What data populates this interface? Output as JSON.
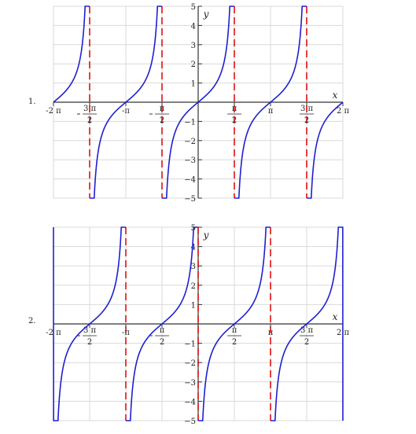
{
  "chart_data": [
    {
      "type": "line",
      "panel_label": "1.",
      "function": "tan",
      "xlim": [
        -6.2832,
        6.2832
      ],
      "ylim": [
        -5,
        5
      ],
      "xlabel": "x",
      "ylabel": "y",
      "grid": true,
      "curve_color": "#1f1fd0",
      "asymptote_color": "#e01010",
      "asymptotes_x": [
        -4.7124,
        -1.5708,
        1.5708,
        4.7124
      ],
      "x_ticks": [
        {
          "x": -6.2832,
          "text": "-2 π",
          "frac": false
        },
        {
          "x": -4.7124,
          "num": "3 π",
          "den": "2",
          "neg": true,
          "frac": true
        },
        {
          "x": -3.1416,
          "text": "-π",
          "frac": false
        },
        {
          "x": -1.5708,
          "num": "π",
          "den": "2",
          "neg": true,
          "frac": true
        },
        {
          "x": 1.5708,
          "num": "π",
          "den": "2",
          "neg": false,
          "frac": true
        },
        {
          "x": 3.1416,
          "text": "π",
          "frac": false
        },
        {
          "x": 4.7124,
          "num": "3 π",
          "den": "2",
          "neg": false,
          "frac": true
        },
        {
          "x": 6.2832,
          "text": "2 π",
          "frac": false
        }
      ],
      "y_ticks": [
        {
          "y": 5,
          "text": "5"
        },
        {
          "y": 4,
          "text": "4"
        },
        {
          "y": 3,
          "text": "3"
        },
        {
          "y": 2,
          "text": "2"
        },
        {
          "y": 1,
          "text": "1"
        },
        {
          "y": -1,
          "text": "−1"
        },
        {
          "y": -2,
          "text": "−2"
        },
        {
          "y": -3,
          "text": "−3"
        },
        {
          "y": -4,
          "text": "−4"
        },
        {
          "y": -5,
          "text": "−5"
        }
      ]
    },
    {
      "type": "line",
      "panel_label": "2.",
      "function": "-cot",
      "xlim": [
        -6.2832,
        6.2832
      ],
      "ylim": [
        -5,
        5
      ],
      "xlabel": "x",
      "ylabel": "y",
      "grid": true,
      "curve_color": "#1f1fd0",
      "asymptote_color": "#e01010",
      "asymptotes_x": [
        -3.1416,
        0,
        3.1416
      ],
      "x_ticks": [
        {
          "x": -6.2832,
          "text": "-2 π",
          "frac": false
        },
        {
          "x": -4.7124,
          "num": "3 π",
          "den": "2",
          "neg": true,
          "frac": true
        },
        {
          "x": -3.1416,
          "text": "-π",
          "frac": false
        },
        {
          "x": -1.5708,
          "num": "π",
          "den": "2",
          "neg": true,
          "frac": true
        },
        {
          "x": 1.5708,
          "num": "π",
          "den": "2",
          "neg": false,
          "frac": true
        },
        {
          "x": 3.1416,
          "text": "π",
          "frac": false
        },
        {
          "x": 4.7124,
          "num": "3 π",
          "den": "2",
          "neg": false,
          "frac": true
        },
        {
          "x": 6.2832,
          "text": "2 π",
          "frac": false
        }
      ],
      "y_ticks": [
        {
          "y": 5,
          "text": "5"
        },
        {
          "y": 4,
          "text": "4"
        },
        {
          "y": 3,
          "text": "3"
        },
        {
          "y": 2,
          "text": "2"
        },
        {
          "y": 1,
          "text": "1"
        },
        {
          "y": -1,
          "text": "−1"
        },
        {
          "y": -2,
          "text": "−2"
        },
        {
          "y": -3,
          "text": "−3"
        },
        {
          "y": -4,
          "text": "−4"
        },
        {
          "y": -5,
          "text": "−5"
        }
      ]
    }
  ]
}
